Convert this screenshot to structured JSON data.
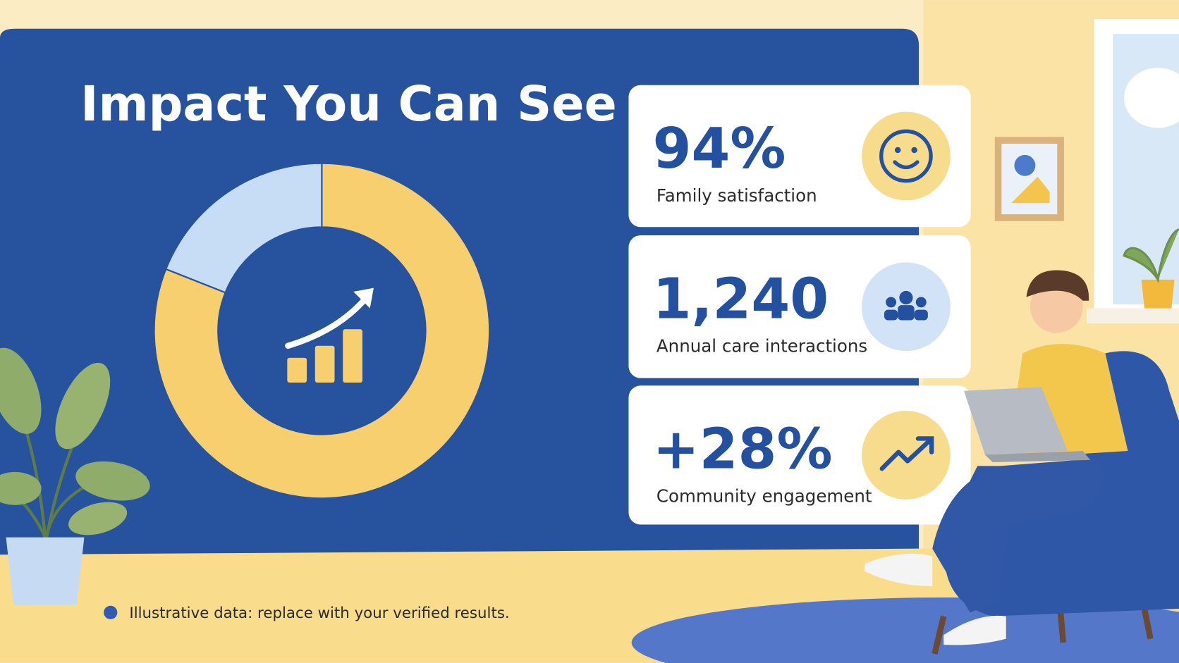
{
  "title": "Impact You Can See",
  "donut": {
    "values": [
      81,
      19
    ],
    "colors": [
      "#f7cf6e",
      "#c7dcf5"
    ]
  },
  "stats": [
    {
      "value": "94%",
      "label": "Family satisfaction"
    },
    {
      "value": "1,240",
      "label": "Annual care interactions"
    },
    {
      "value": "+28%",
      "label": "Community engagement"
    }
  ],
  "footnote": "Illustrative data: replace with your verified results."
}
